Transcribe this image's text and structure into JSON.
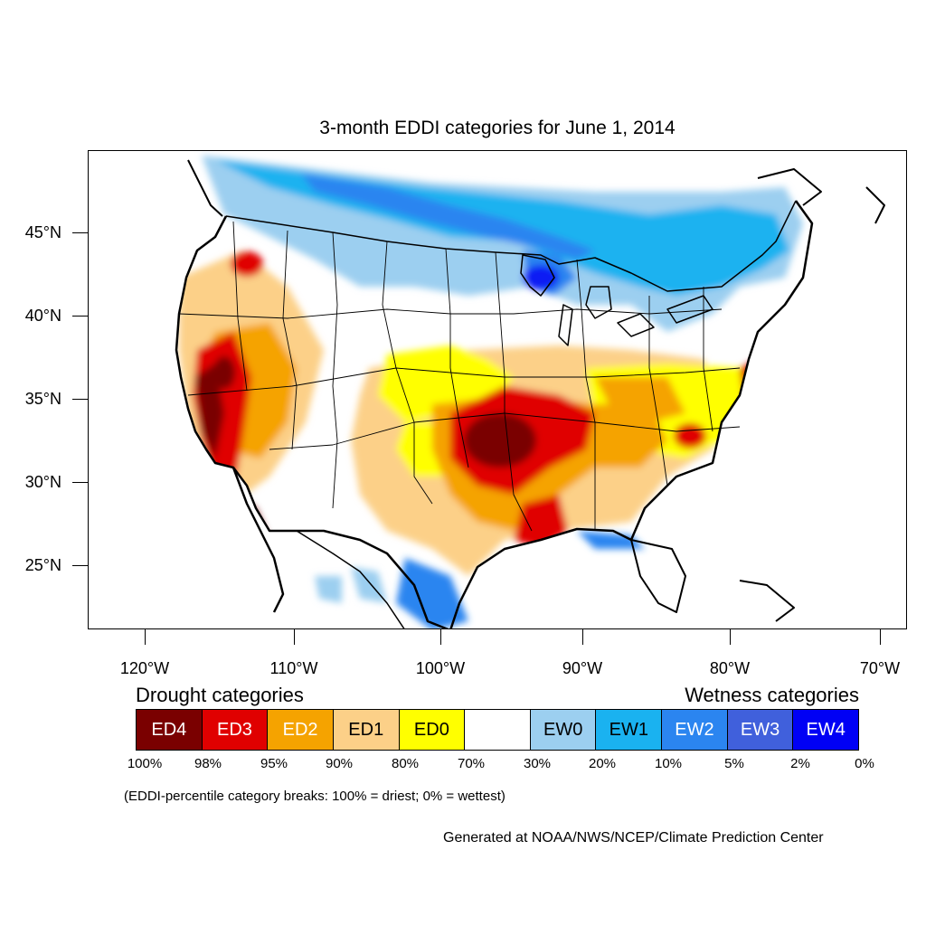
{
  "title": "3-month EDDI categories for June 1, 2014",
  "lat_labels": [
    "45°N",
    "40°N",
    "35°N",
    "30°N",
    "25°N"
  ],
  "lon_labels": [
    "120°W",
    "110°W",
    "100°W",
    "90°W",
    "80°W",
    "70°W"
  ],
  "legend": {
    "drought_title": "Drought categories",
    "wetness_title": "Wetness categories",
    "categories": [
      {
        "label": "ED4",
        "color": "#7a0000",
        "text_color": "#ffffff"
      },
      {
        "label": "ED3",
        "color": "#e00000",
        "text_color": "#ffffff"
      },
      {
        "label": "ED2",
        "color": "#f5a300",
        "text_color": "#ffffff"
      },
      {
        "label": "ED1",
        "color": "#fcd088",
        "text_color": "#000000"
      },
      {
        "label": "ED0",
        "color": "#ffff00",
        "text_color": "#000000"
      },
      {
        "label": "",
        "color": "#ffffff",
        "text_color": "#000000"
      },
      {
        "label": "EW0",
        "color": "#9ccff0",
        "text_color": "#000000"
      },
      {
        "label": "EW1",
        "color": "#1ab2f0",
        "text_color": "#000000"
      },
      {
        "label": "EW2",
        "color": "#2b85f0",
        "text_color": "#ffffff"
      },
      {
        "label": "EW3",
        "color": "#4060dc",
        "text_color": "#ffffff"
      },
      {
        "label": "EW4",
        "color": "#0000f5",
        "text_color": "#ffffff"
      }
    ],
    "percentile_labels": [
      "100%",
      "98%",
      "95%",
      "90%",
      "80%",
      "70%",
      "30%",
      "20%",
      "10%",
      "5%",
      "2%",
      "0%"
    ]
  },
  "note": "(EDDI-percentile category breaks: 100% = driest; 0% = wettest)",
  "credit": "Generated at NOAA/NWS/NCEP/Climate Prediction Center"
}
